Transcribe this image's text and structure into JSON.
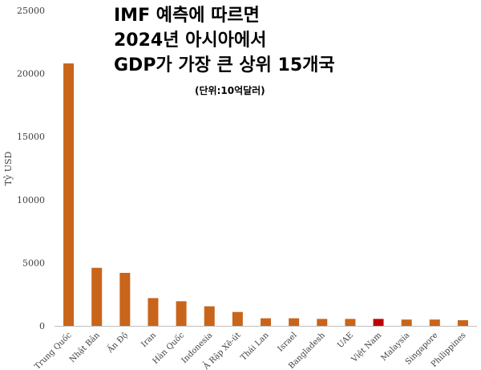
{
  "chart_data": {
    "type": "bar",
    "title": [
      "IMF 예측에 따르면",
      "2024년 아시아에서",
      "GDP가 가장 큰 상위 15개국"
    ],
    "subtitle": "(단위:10억달러)",
    "xlabel": "",
    "ylabel": "Tỷ USD",
    "ylim": [
      0,
      25000
    ],
    "yticks": [
      "0",
      "5000",
      "10000",
      "15000",
      "20000",
      "25000"
    ],
    "grid": false,
    "legend": "none",
    "categories": [
      "Trung Quốc",
      "Nhật Bản",
      "Ấn Độ",
      "Iran",
      "Hàn Quốc",
      "Indonesia",
      "Ả Rập Xê-út",
      "Thái Lan",
      "Israel",
      "Bangladesh",
      "UAE",
      "Việt Nam",
      "Malaysia",
      "Singapore",
      "Philippines"
    ],
    "values": [
      20800,
      4600,
      4200,
      2200,
      1950,
      1550,
      1100,
      600,
      600,
      550,
      550,
      550,
      500,
      500,
      450
    ],
    "colors": {
      "bar": "#c8651b",
      "highlight": "#c00000",
      "highlight_index": 11,
      "axis": "#bfbfbf",
      "text": "#404040"
    }
  }
}
